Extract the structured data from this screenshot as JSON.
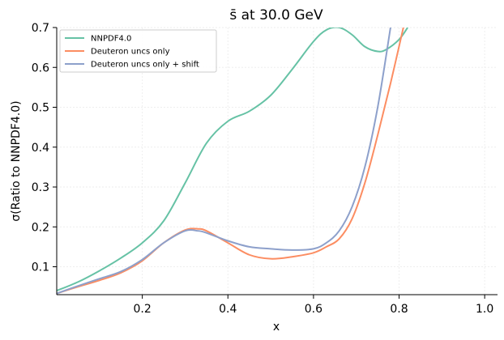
{
  "chart_data": {
    "type": "line",
    "title": "s̄ at 30.0 GeV",
    "xlabel": "x",
    "ylabel": "σ(Ratio to NNPDF4.0)",
    "xlim": [
      0.0,
      1.03
    ],
    "ylim": [
      0.03,
      0.7
    ],
    "xticks": [
      0.2,
      0.4,
      0.6,
      0.8,
      1.0
    ],
    "xtick_labels": [
      "0.2",
      "0.4",
      "0.6",
      "0.8",
      "1.0"
    ],
    "yticks": [
      0.1,
      0.2,
      0.3,
      0.4,
      0.5,
      0.6,
      0.7
    ],
    "ytick_labels": [
      "0.1",
      "0.2",
      "0.3",
      "0.4",
      "0.5",
      "0.6",
      "0.7"
    ],
    "grid": true,
    "legend_position": "top-left",
    "series": [
      {
        "name": "NNPDF4.0",
        "color": "#66c2a5",
        "x": [
          0.0,
          0.05,
          0.1,
          0.15,
          0.2,
          0.25,
          0.3,
          0.35,
          0.4,
          0.45,
          0.5,
          0.55,
          0.6,
          0.63,
          0.66,
          0.69,
          0.72,
          0.75,
          0.77,
          0.8,
          0.82
        ],
        "y": [
          0.04,
          0.062,
          0.09,
          0.122,
          0.16,
          0.215,
          0.31,
          0.41,
          0.465,
          0.49,
          0.53,
          0.595,
          0.665,
          0.694,
          0.7,
          0.682,
          0.652,
          0.64,
          0.645,
          0.67,
          0.7
        ]
      },
      {
        "name": "Deuteron uncs only",
        "color": "#fc8d62",
        "x": [
          0.0,
          0.05,
          0.1,
          0.15,
          0.2,
          0.25,
          0.3,
          0.33,
          0.35,
          0.4,
          0.45,
          0.5,
          0.55,
          0.6,
          0.63,
          0.66,
          0.69,
          0.72,
          0.75,
          0.78,
          0.81
        ],
        "y": [
          0.033,
          0.05,
          0.066,
          0.085,
          0.115,
          0.16,
          0.192,
          0.195,
          0.19,
          0.16,
          0.13,
          0.12,
          0.125,
          0.135,
          0.15,
          0.17,
          0.22,
          0.31,
          0.43,
          0.56,
          0.7
        ]
      },
      {
        "name": "Deuteron uncs only + shift",
        "color": "#8da0cb",
        "x": [
          0.0,
          0.05,
          0.1,
          0.15,
          0.2,
          0.25,
          0.3,
          0.33,
          0.35,
          0.4,
          0.45,
          0.5,
          0.55,
          0.6,
          0.63,
          0.66,
          0.69,
          0.72,
          0.75,
          0.78
        ],
        "y": [
          0.033,
          0.052,
          0.07,
          0.088,
          0.118,
          0.16,
          0.19,
          0.19,
          0.185,
          0.165,
          0.15,
          0.145,
          0.142,
          0.145,
          0.16,
          0.19,
          0.25,
          0.35,
          0.5,
          0.7
        ]
      }
    ]
  }
}
